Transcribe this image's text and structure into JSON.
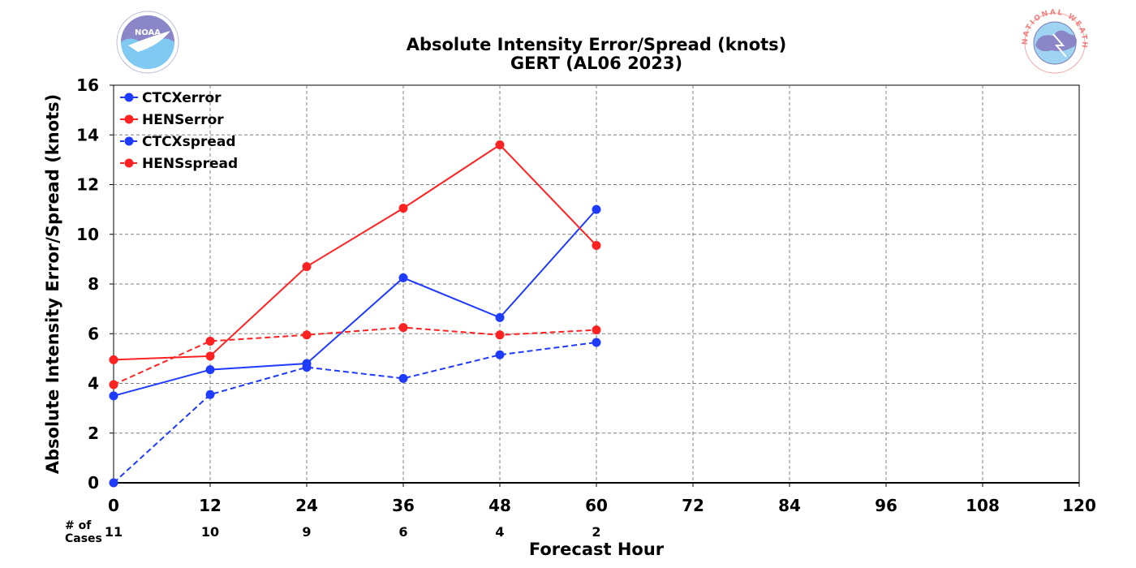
{
  "header": {
    "title_line1": "Absolute Intensity Error/Spread (knots)",
    "title_line2": "GERT (AL06 2023)"
  },
  "logos": {
    "left": {
      "icon": "noaa-logo-icon",
      "text": "NOAA"
    },
    "right": {
      "icon": "nws-logo-icon",
      "text": "NATIONAL WEATHER SERVICE"
    }
  },
  "cases": {
    "label_line1": "# of",
    "label_line2": "Cases",
    "x": [
      0,
      12,
      24,
      36,
      48,
      60
    ],
    "values": [
      "11",
      "10",
      "9",
      "6",
      "4",
      "2"
    ]
  },
  "chart_data": {
    "type": "line",
    "xlabel": "Forecast Hour",
    "ylabel": "Absolute Intensity Error/Spread (knots)",
    "xlim": [
      0,
      120
    ],
    "ylim": [
      0,
      16
    ],
    "xticks": [
      0,
      12,
      24,
      36,
      48,
      60,
      72,
      84,
      96,
      108,
      120
    ],
    "yticks": [
      0,
      2,
      4,
      6,
      8,
      10,
      12,
      14,
      16
    ],
    "grid": true,
    "legend_position": "top-left",
    "x": [
      0,
      12,
      24,
      36,
      48,
      60
    ],
    "series": [
      {
        "name": "CTCXerror",
        "color": "#1f3bff",
        "dash": "solid",
        "values": [
          3.5,
          4.55,
          4.8,
          8.25,
          6.65,
          11.0
        ]
      },
      {
        "name": "HENSerror",
        "color": "#ff2222",
        "dash": "solid",
        "values": [
          4.95,
          5.1,
          8.7,
          11.05,
          13.6,
          9.55
        ]
      },
      {
        "name": "CTCXspread",
        "color": "#1f3bff",
        "dash": "dashed",
        "values": [
          0.0,
          3.55,
          4.65,
          4.2,
          5.15,
          5.65
        ]
      },
      {
        "name": "HENSspread",
        "color": "#ff2222",
        "dash": "dashed",
        "values": [
          3.95,
          5.7,
          5.95,
          6.25,
          5.95,
          6.15
        ]
      }
    ]
  }
}
